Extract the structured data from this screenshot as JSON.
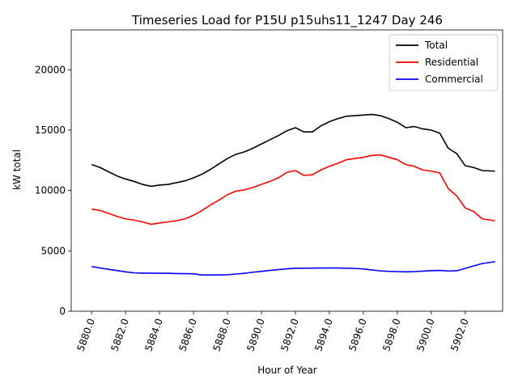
{
  "chart_data": {
    "type": "line",
    "title": "Timeseries Load for P15U p15uhs11_1247  Day 246",
    "xlabel": "Hour of Year",
    "ylabel": "kW total",
    "xlim": [
      5878.8,
      5904.2
    ],
    "ylim": [
      0,
      23300
    ],
    "x_ticks": [
      5880,
      5882,
      5884,
      5886,
      5888,
      5890,
      5892,
      5894,
      5896,
      5898,
      5900,
      5902
    ],
    "x_tick_labels": [
      "5880.0",
      "5882.0",
      "5884.0",
      "5886.0",
      "5888.0",
      "5890.0",
      "5892.0",
      "5894.0",
      "5896.0",
      "5898.0",
      "5900.0",
      "5902.0"
    ],
    "y_ticks": [
      0,
      5000,
      10000,
      15000,
      20000
    ],
    "y_tick_labels": [
      "0",
      "5000",
      "10000",
      "15000",
      "20000"
    ],
    "legend_position": "top-right",
    "series": [
      {
        "name": "Total",
        "color": "#000000",
        "x": [
          5880,
          5880.5,
          5881,
          5881.5,
          5882,
          5882.5,
          5883,
          5883.5,
          5884,
          5884.5,
          5885,
          5885.5,
          5886,
          5886.5,
          5887,
          5887.5,
          5888,
          5888.5,
          5889,
          5889.5,
          5890,
          5890.5,
          5891,
          5891.5,
          5892,
          5892.5,
          5893,
          5893.5,
          5894,
          5894.5,
          5895,
          5895.5,
          5896,
          5896.5,
          5897,
          5897.5,
          5898,
          5898.5,
          5899,
          5899.5,
          5900,
          5900.5,
          5901,
          5901.5,
          5902,
          5902.5,
          5903,
          5903.75
        ],
        "values": [
          12150,
          11900,
          11550,
          11200,
          10950,
          10750,
          10500,
          10350,
          10450,
          10500,
          10650,
          10800,
          11050,
          11350,
          11750,
          12200,
          12650,
          13000,
          13200,
          13500,
          13850,
          14200,
          14550,
          14950,
          15200,
          14850,
          14850,
          15350,
          15700,
          15950,
          16150,
          16200,
          16250,
          16300,
          16200,
          15950,
          15650,
          15200,
          15300,
          15100,
          15000,
          14750,
          13500,
          13050,
          12050,
          11900,
          11650,
          11600
        ]
      },
      {
        "name": "Residential",
        "color": "#ff0000",
        "x": [
          5880,
          5880.5,
          5881,
          5881.5,
          5882,
          5882.5,
          5883,
          5883.5,
          5884,
          5884.5,
          5885,
          5885.5,
          5886,
          5886.5,
          5887,
          5887.5,
          5888,
          5888.5,
          5889,
          5889.5,
          5890,
          5890.5,
          5891,
          5891.5,
          5892,
          5892.5,
          5893,
          5893.5,
          5894,
          5894.5,
          5895,
          5895.5,
          5896,
          5896.5,
          5897,
          5897.5,
          5898,
          5898.5,
          5899,
          5899.5,
          5900,
          5900.5,
          5901,
          5901.5,
          5902,
          5902.5,
          5903,
          5903.75
        ],
        "values": [
          8450,
          8350,
          8100,
          7850,
          7650,
          7550,
          7400,
          7200,
          7300,
          7400,
          7500,
          7650,
          7950,
          8350,
          8800,
          9200,
          9650,
          9950,
          10050,
          10250,
          10500,
          10750,
          11050,
          11500,
          11650,
          11250,
          11300,
          11700,
          12000,
          12250,
          12550,
          12650,
          12750,
          12900,
          12950,
          12750,
          12550,
          12150,
          12000,
          11700,
          11600,
          11450,
          10150,
          9550,
          8550,
          8250,
          7650,
          7500
        ]
      },
      {
        "name": "Commercial",
        "color": "#0000ff",
        "x": [
          5880,
          5880.5,
          5881,
          5881.5,
          5882,
          5882.5,
          5883,
          5883.5,
          5884,
          5884.5,
          5885,
          5885.5,
          5886,
          5886.5,
          5887,
          5887.5,
          5888,
          5888.5,
          5889,
          5889.5,
          5890,
          5890.5,
          5891,
          5891.5,
          5892,
          5892.5,
          5893,
          5893.5,
          5894,
          5894.5,
          5895,
          5895.5,
          5896,
          5896.5,
          5897,
          5897.5,
          5898,
          5898.5,
          5899,
          5899.5,
          5900,
          5900.5,
          5901,
          5901.5,
          5902,
          5902.5,
          5903,
          5903.75
        ],
        "values": [
          3700,
          3580,
          3470,
          3370,
          3260,
          3180,
          3150,
          3150,
          3140,
          3140,
          3120,
          3110,
          3100,
          3000,
          3000,
          3010,
          3020,
          3080,
          3140,
          3230,
          3300,
          3380,
          3450,
          3510,
          3560,
          3560,
          3570,
          3580,
          3580,
          3580,
          3560,
          3540,
          3500,
          3420,
          3340,
          3300,
          3280,
          3260,
          3280,
          3320,
          3360,
          3380,
          3330,
          3350,
          3550,
          3750,
          3950,
          4100
        ]
      }
    ]
  }
}
